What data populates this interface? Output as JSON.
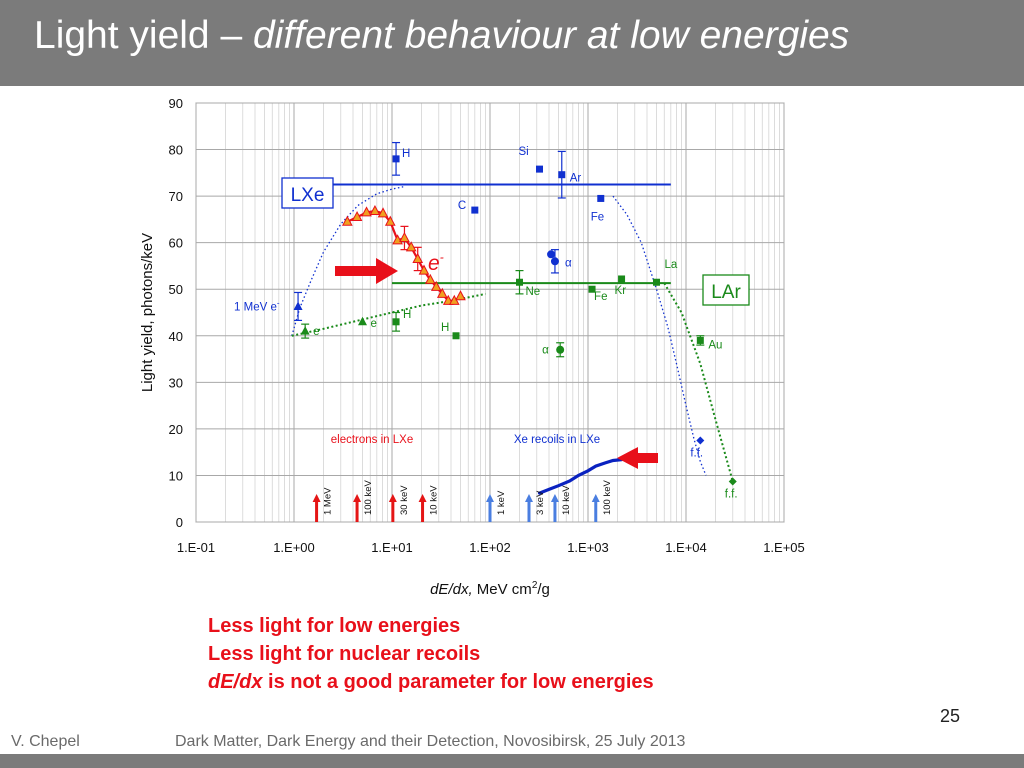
{
  "slide": {
    "title_main": "Light yield – ",
    "title_italic": "different behaviour at low energies",
    "bullets": [
      {
        "italic": "",
        "text": "Less light for low energies"
      },
      {
        "italic": "",
        "text": "Less light for nuclear recoils"
      },
      {
        "italic": "dE/dx",
        "text": " is not a good parameter for low energies"
      }
    ],
    "slide_number": "25",
    "footer_author": "V. Chepel",
    "footer_conference": "Dark Matter, Dark Energy and their Detection, Novosibirsk, 25 July 2013"
  },
  "colors": {
    "lxe": "#1030d0",
    "lar": "#1a8a1a",
    "electrons": "#e8101a",
    "triangles": "#f0a020",
    "title_bg": "#7b7b7b"
  },
  "chart_data": {
    "type": "scatter",
    "x_scale": "log",
    "xlim": [
      0.1,
      100000
    ],
    "ylim": [
      0,
      90
    ],
    "x_ticks": [
      "1.E-01",
      "1.E+00",
      "1.E+01",
      "1.E+02",
      "1.E+03",
      "1.E+04",
      "1.E+05"
    ],
    "y_ticks": [
      0,
      10,
      20,
      30,
      40,
      50,
      60,
      70,
      80,
      90
    ],
    "xlabel_italic": "dE/dx,",
    "xlabel_units": "MeV cm",
    "xlabel_sup": "2",
    "xlabel_tail": "/g",
    "ylabel": "Light yield, photons/keV",
    "grid": true,
    "legend_boxes": {
      "lxe": "LXe",
      "lar": "LAr"
    },
    "e_minus_label": "e",
    "e_minus_sup": "-",
    "electrons_legend": "electrons in LXe",
    "recoils_legend": "Xe recoils in LXe",
    "lxe_level": {
      "y": 72.5,
      "x": [
        1.65,
        7000
      ]
    },
    "lar_level": {
      "y": 51.3,
      "x": [
        10,
        7000
      ]
    },
    "lxe_points": [
      {
        "x": 1.1,
        "y": 46.3,
        "err": 3,
        "label": "1 MeV e",
        "sup": "-",
        "marker": "triangle"
      },
      {
        "x": 11,
        "y": 78,
        "err": 3.5,
        "label": "H",
        "marker": "square"
      },
      {
        "x": 70,
        "y": 67,
        "label": "C",
        "marker": "square"
      },
      {
        "x": 320,
        "y": 75.8,
        "label": "Si",
        "marker": "square"
      },
      {
        "x": 540,
        "y": 74.6,
        "err": 5,
        "label": "Ar",
        "marker": "square"
      },
      {
        "x": 1350,
        "y": 69.5,
        "label": "Fe",
        "marker": "square"
      },
      {
        "x": 420,
        "y": 57.5,
        "label": "",
        "marker": "circle"
      },
      {
        "x": 460,
        "y": 56,
        "err": 2.5,
        "label": "α",
        "marker": "circle"
      },
      {
        "x": 14000,
        "y": 17.5,
        "label": "f.f.",
        "marker": "diamond"
      }
    ],
    "lar_points": [
      {
        "x": 1.3,
        "y": 41,
        "err": 1.5,
        "label": "e",
        "marker": "triangle"
      },
      {
        "x": 5,
        "y": 43,
        "label": "e",
        "marker": "triangle"
      },
      {
        "x": 11,
        "y": 43,
        "err": 2,
        "label": "H",
        "marker": "square"
      },
      {
        "x": 45,
        "y": 40,
        "label": "H",
        "marker": "square"
      },
      {
        "x": 200,
        "y": 51.5,
        "err": 2.5,
        "label": "Ne",
        "marker": "square"
      },
      {
        "x": 1100,
        "y": 50,
        "label": "Fe",
        "marker": "square"
      },
      {
        "x": 2200,
        "y": 52.2,
        "label": "Kr",
        "marker": "square"
      },
      {
        "x": 5000,
        "y": 51.5,
        "label": "La",
        "marker": "square"
      },
      {
        "x": 14000,
        "y": 39,
        "err": 1,
        "label": "Au",
        "marker": "square"
      },
      {
        "x": 520,
        "y": 37,
        "err": 1.5,
        "label": "α",
        "marker": "circle"
      },
      {
        "x": 30000,
        "y": 8.7,
        "label": "f.f.",
        "marker": "diamond"
      }
    ],
    "electrons_lxe": {
      "x": [
        3.5,
        4.4,
        5.5,
        6.7,
        8.1,
        9.6,
        11.4,
        13.4,
        15.7,
        18.3,
        21.2,
        24.6,
        28.3,
        32.6,
        37.5,
        43.2,
        50
      ],
      "y": [
        64.5,
        65.5,
        66.5,
        66.8,
        66.3,
        64.5,
        60.5,
        61,
        59,
        56.5,
        54,
        52,
        50.5,
        49,
        47.5,
        47.5,
        48.5
      ],
      "err_indices": [
        7,
        9
      ],
      "err": 2.5
    },
    "xe_recoils": {
      "x": [
        320,
        400,
        500,
        650,
        800,
        1000,
        1200,
        1500,
        1800,
        2200
      ],
      "y": [
        6.2,
        7,
        7.8,
        8.8,
        10,
        11,
        12,
        12.7,
        13.2,
        13.4
      ]
    },
    "lxe_fit_left": {
      "x": [
        0.95,
        1.15,
        1.5,
        2,
        3,
        4.5,
        7,
        10,
        13
      ],
      "y": [
        40,
        46,
        52,
        58,
        64,
        68,
        70.5,
        71.5,
        72
      ]
    },
    "lxe_fit_right": {
      "x": [
        1800,
        2500,
        3500,
        5000,
        6500,
        8000,
        10000,
        12000,
        14000,
        16000
      ],
      "y": [
        70,
        66,
        60,
        50,
        42,
        34,
        25,
        18,
        13,
        10
      ]
    },
    "lar_fit_left": {
      "x": [
        0.95,
        2,
        5,
        10,
        20,
        40,
        90
      ],
      "y": [
        40,
        41.5,
        43.5,
        45,
        46.5,
        47.5,
        49
      ]
    },
    "lar_fit_right": {
      "x": [
        6000,
        9000,
        14000,
        20000,
        30000
      ],
      "y": [
        51.3,
        45,
        34,
        22,
        8.7
      ]
    },
    "energy_arrows_electrons": [
      {
        "x": 1.7,
        "label": "1 MeV"
      },
      {
        "x": 4.4,
        "label": "100 keV"
      },
      {
        "x": 10.2,
        "label": "30 keV"
      },
      {
        "x": 20.5,
        "label": "10 keV"
      }
    ],
    "energy_arrows_recoils": [
      {
        "x": 100,
        "label": "1 keV"
      },
      {
        "x": 250,
        "label": "3 keV"
      },
      {
        "x": 460,
        "label": "10 keV"
      },
      {
        "x": 1200,
        "label": "100 keV"
      }
    ]
  }
}
